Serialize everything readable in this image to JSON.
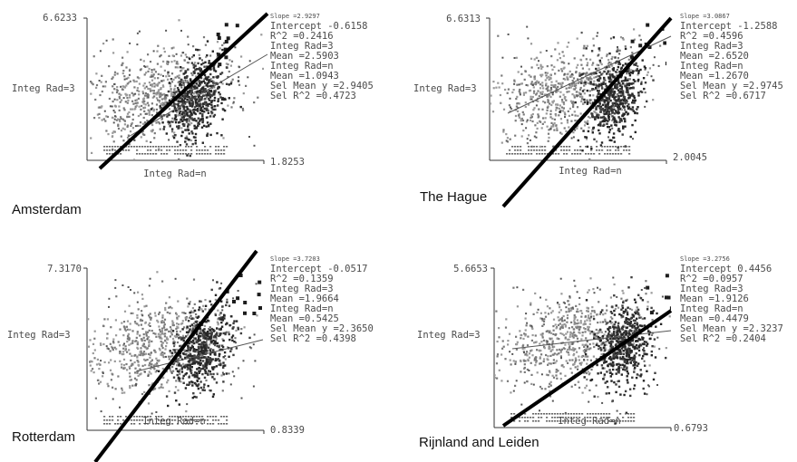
{
  "chart_data": [
    {
      "type": "scatter",
      "title": "Amsterdam",
      "xlabel": "Integ Rad=n",
      "ylabel": "Integ Rad=3",
      "y_max_label": "6.6233",
      "x_max_label": "1.8253",
      "stats": [
        {
          "label": "Slope =",
          "value": "2.9297",
          "small": true
        },
        {
          "label": "Intercept ",
          "value": "-0.6158"
        },
        {
          "label": "R^2 =",
          "value": "0.2416"
        },
        {
          "label": "Integ Rad=3",
          "value": ""
        },
        {
          "label": "Mean =",
          "value": "2.5903"
        },
        {
          "label": "Integ Rad=n",
          "value": ""
        },
        {
          "label": "Mean =",
          "value": "1.0943"
        },
        {
          "label": "Sel Mean y =",
          "value": "2.9405"
        },
        {
          "label": "Sel R^2 =",
          "value": "0.4723"
        }
      ],
      "regression": {
        "slope": 2.9297,
        "intercept": -0.6158,
        "r2": 0.2416
      },
      "cloud": {
        "mean_x": 1.0943,
        "mean_y": 2.5903,
        "sel_mean_y": 2.9405,
        "sel_r2": 0.4723
      }
    },
    {
      "type": "scatter",
      "title": "The Hague",
      "xlabel": "Integ Rad=n",
      "ylabel": "Integ Rad=3",
      "y_max_label": "6.6313",
      "x_max_label": "2.0045",
      "stats": [
        {
          "label": "Slope =",
          "value": "3.0867",
          "small": true
        },
        {
          "label": "Intercept ",
          "value": "-1.2588"
        },
        {
          "label": "R^2 =",
          "value": "0.4596"
        },
        {
          "label": "Integ Rad=3",
          "value": ""
        },
        {
          "label": "Mean =",
          "value": "2.6520"
        },
        {
          "label": "Integ Rad=n",
          "value": ""
        },
        {
          "label": "Mean =",
          "value": "1.2670"
        },
        {
          "label": "Sel Mean y =",
          "value": "2.9745"
        },
        {
          "label": "Sel R^2 =",
          "value": "0.6717"
        }
      ],
      "regression": {
        "slope": 3.0867,
        "intercept": -1.2588,
        "r2": 0.4596
      },
      "cloud": {
        "mean_x": 1.267,
        "mean_y": 2.652,
        "sel_mean_y": 2.9745,
        "sel_r2": 0.6717
      }
    },
    {
      "type": "scatter",
      "title": "Rotterdam",
      "xlabel": "Integ Rad=n",
      "ylabel": "Integ Rad=3",
      "y_max_label": "7.3170",
      "x_max_label": "0.8339",
      "stats": [
        {
          "label": "Slope =",
          "value": "3.7203",
          "small": true
        },
        {
          "label": "Intercept ",
          "value": "-0.0517"
        },
        {
          "label": "R^2 =",
          "value": "0.1359"
        },
        {
          "label": "Integ Rad=3",
          "value": ""
        },
        {
          "label": "Mean =",
          "value": "1.9664"
        },
        {
          "label": "Integ Rad=n",
          "value": ""
        },
        {
          "label": "Mean =",
          "value": "0.5425"
        },
        {
          "label": "Sel Mean y =",
          "value": "2.3650"
        },
        {
          "label": "Sel R^2 =",
          "value": "0.4398"
        }
      ],
      "regression": {
        "slope": 3.7203,
        "intercept": -0.0517,
        "r2": 0.1359
      },
      "cloud": {
        "mean_x": 0.5425,
        "mean_y": 1.9664,
        "sel_mean_y": 2.365,
        "sel_r2": 0.4398
      }
    },
    {
      "type": "scatter",
      "title": "Rijnland and Leiden",
      "xlabel": "Integ Rad=n",
      "ylabel": "Integ Rad=3",
      "y_max_label": "5.6653",
      "x_max_label": "0.6793",
      "stats": [
        {
          "label": "Slope =",
          "value": "3.2756",
          "small": true
        },
        {
          "label": "Intercept ",
          "value": "0.4456"
        },
        {
          "label": "R^2 =",
          "value": "0.0957"
        },
        {
          "label": "Integ Rad=3",
          "value": ""
        },
        {
          "label": "Mean =",
          "value": "1.9126"
        },
        {
          "label": "Integ Rad=n",
          "value": ""
        },
        {
          "label": "Mean =",
          "value": "0.4479"
        },
        {
          "label": "Sel Mean y =",
          "value": "2.3237"
        },
        {
          "label": "Sel R^2 =",
          "value": "0.2404"
        }
      ],
      "regression": {
        "slope": 3.2756,
        "intercept": 0.4456,
        "r2": 0.0957
      },
      "cloud": {
        "mean_x": 0.4479,
        "mean_y": 1.9126,
        "sel_mean_y": 2.3237,
        "sel_r2": 0.2404
      }
    }
  ]
}
